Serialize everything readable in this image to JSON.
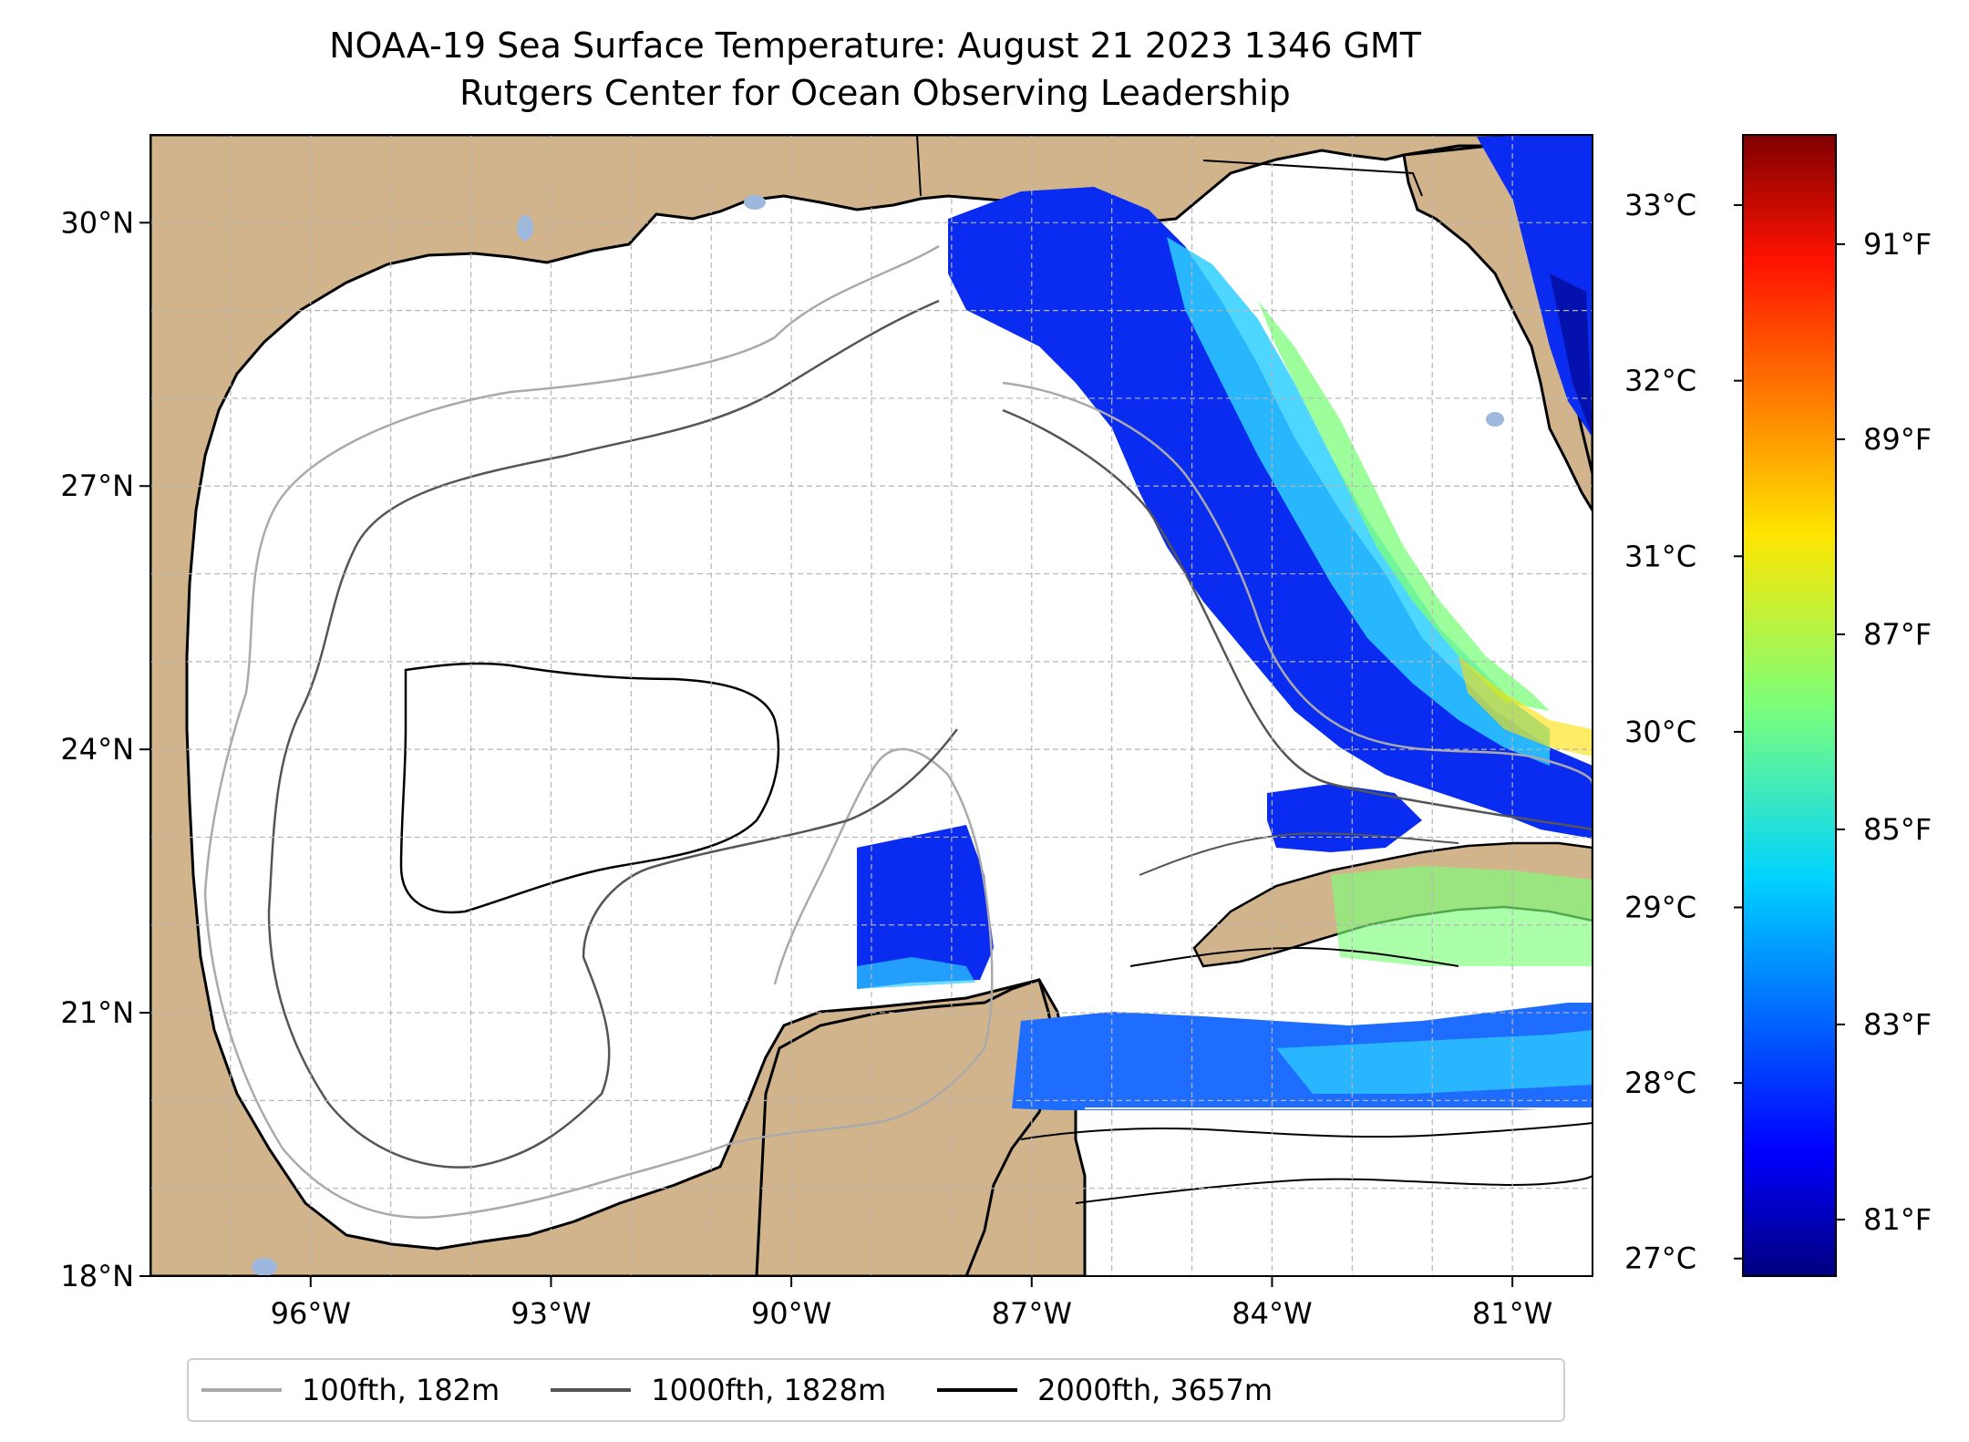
{
  "title": {
    "line1": "NOAA-19 Sea Surface Temperature: August 21 2023 1346 GMT",
    "line2": "Rutgers Center for Ocean Observing Leadership"
  },
  "map": {
    "lon_range": [
      -98.0,
      -80.0
    ],
    "lat_range": [
      18.0,
      31.0
    ],
    "land_color": "#D2B48C",
    "water_color": "#ffffff",
    "lake_color": "#9DB8DC",
    "grid": true,
    "x_ticks": [
      {
        "lon": -96,
        "label": "96°W"
      },
      {
        "lon": -93,
        "label": "93°W"
      },
      {
        "lon": -90,
        "label": "90°W"
      },
      {
        "lon": -87,
        "label": "87°W"
      },
      {
        "lon": -84,
        "label": "84°W"
      },
      {
        "lon": -81,
        "label": "81°W"
      }
    ],
    "y_ticks": [
      {
        "lat": 30,
        "label": "30°N"
      },
      {
        "lat": 27,
        "label": "27°N"
      },
      {
        "lat": 24,
        "label": "24°N"
      },
      {
        "lat": 21,
        "label": "21°N"
      },
      {
        "lat": 18,
        "label": "18°N"
      }
    ]
  },
  "colorbar": {
    "colormap": "jet",
    "celsius_range": [
      26.9,
      33.4
    ],
    "celsius_ticks": [
      {
        "value": 27,
        "label": "27°C"
      },
      {
        "value": 28,
        "label": "28°C"
      },
      {
        "value": 29,
        "label": "29°C"
      },
      {
        "value": 30,
        "label": "30°C"
      },
      {
        "value": 31,
        "label": "31°C"
      },
      {
        "value": 32,
        "label": "32°C"
      },
      {
        "value": 33,
        "label": "33°C"
      }
    ],
    "fahrenheit_ticks": [
      {
        "value": 81,
        "label": "81°F"
      },
      {
        "value": 83,
        "label": "83°F"
      },
      {
        "value": 85,
        "label": "85°F"
      },
      {
        "value": 87,
        "label": "87°F"
      },
      {
        "value": 89,
        "label": "89°F"
      },
      {
        "value": 91,
        "label": "91°F"
      }
    ]
  },
  "legend": [
    {
      "label": "100fth, 182m",
      "color": "#aaaaaa"
    },
    {
      "label": "1000fth, 1828m",
      "color": "#555555"
    },
    {
      "label": "2000fth, 3657m",
      "color": "#000000"
    }
  ]
}
